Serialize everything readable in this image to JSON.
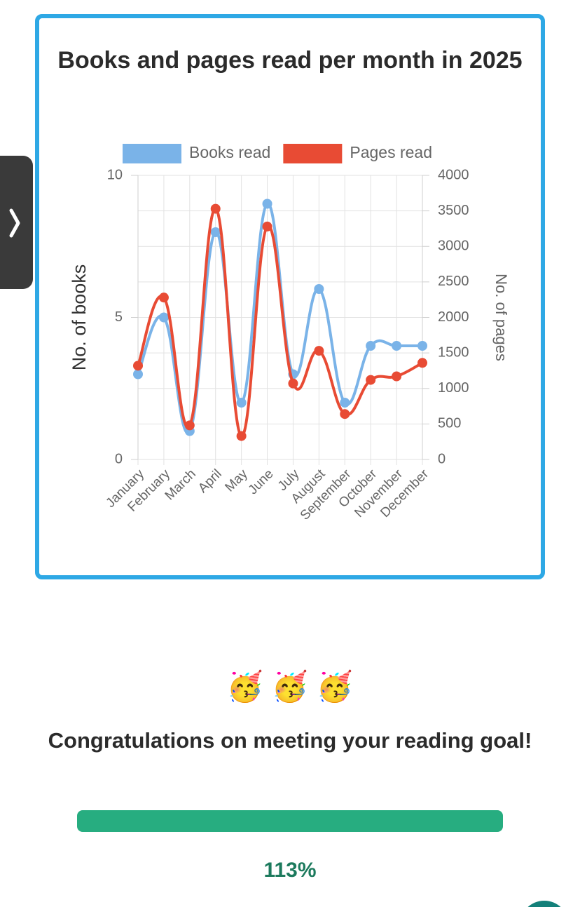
{
  "chart_data": {
    "type": "line",
    "title": "Books and pages read per month in 2025",
    "categories": [
      "January",
      "February",
      "March",
      "April",
      "May",
      "June",
      "July",
      "August",
      "September",
      "October",
      "November",
      "December"
    ],
    "series": [
      {
        "name": "Books read",
        "color": "#7ab3e8",
        "values": [
          3,
          5,
          1,
          8,
          2,
          9,
          3,
          6,
          2,
          4,
          4,
          4
        ]
      },
      {
        "name": "Pages read",
        "color": "#e84b34",
        "axis": "y2",
        "values": [
          1320,
          2280,
          480,
          3530,
          330,
          3280,
          1070,
          1530,
          640,
          1120,
          1170,
          1360
        ]
      }
    ],
    "y_label": "No. of books",
    "y2_label": "No. of pages",
    "ylim": [
      0,
      10
    ],
    "yticks": [
      0,
      5,
      10
    ],
    "y2lim": [
      0,
      4000
    ],
    "y2ticks": [
      0,
      500,
      1000,
      1500,
      2000,
      2500,
      3000,
      3500,
      4000
    ],
    "grid": true,
    "legend": "top"
  },
  "celebration": "🥳 🥳 🥳",
  "message": "Congratulations on meeting your reading goal!",
  "progress_label": "113%"
}
